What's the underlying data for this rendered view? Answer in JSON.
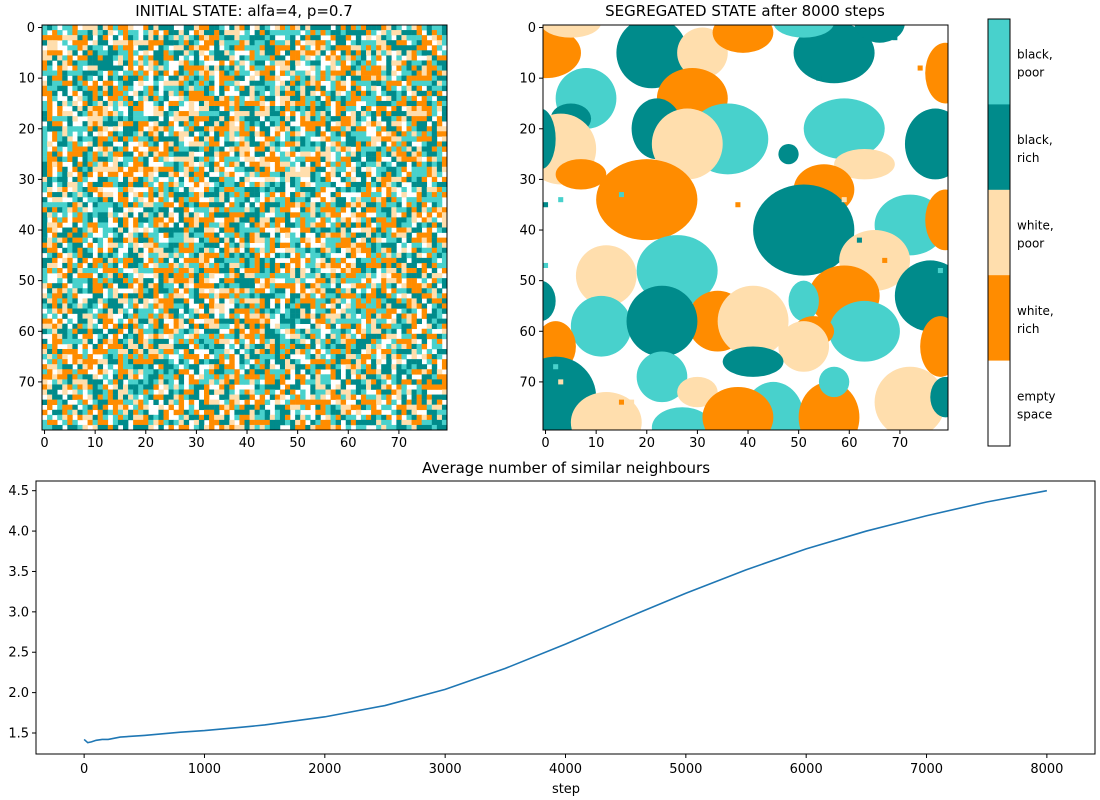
{
  "chart_data": [
    {
      "type": "heatmap",
      "title": "INITIAL STATE:  alfa=4, p=0.7",
      "grid_size": 80,
      "xticks": [
        0,
        10,
        20,
        30,
        40,
        50,
        60,
        70
      ],
      "yticks": [
        0,
        10,
        20,
        30,
        40,
        50,
        60,
        70
      ],
      "state": "random mixture of all five cell types"
    },
    {
      "type": "heatmap",
      "title": "SEGREGATED STATE  after 8000 steps",
      "grid_size": 80,
      "xticks": [
        0,
        10,
        20,
        30,
        40,
        50,
        60,
        70
      ],
      "yticks": [
        0,
        10,
        20,
        30,
        40,
        50,
        60,
        70
      ],
      "state": "segregated clusters of like cells"
    },
    {
      "type": "line",
      "title": "Average number of similar neighbours",
      "xlabel": "step",
      "ylabel": "",
      "xlim": [
        -400,
        8400
      ],
      "ylim": [
        1.24,
        4.62
      ],
      "xticks": [
        0,
        1000,
        2000,
        3000,
        4000,
        5000,
        6000,
        7000,
        8000
      ],
      "yticks": [
        "1.5",
        "2.0",
        "2.5",
        "3.0",
        "3.5",
        "4.0",
        "4.5"
      ],
      "color": "#1f77b4",
      "x": [
        0,
        30,
        60,
        100,
        150,
        200,
        300,
        500,
        800,
        1000,
        1300,
        1500,
        2000,
        2500,
        3000,
        3500,
        4000,
        4500,
        5000,
        5500,
        6000,
        6500,
        7000,
        7500,
        8000
      ],
      "y": [
        1.42,
        1.38,
        1.39,
        1.41,
        1.42,
        1.42,
        1.45,
        1.47,
        1.51,
        1.53,
        1.57,
        1.6,
        1.7,
        1.84,
        2.04,
        2.3,
        2.6,
        2.92,
        3.23,
        3.52,
        3.78,
        4.0,
        4.19,
        4.36,
        4.5
      ]
    }
  ],
  "colorbar": [
    {
      "label": "black,\npoor",
      "color": "#48d1cc"
    },
    {
      "label": "black,\nrich",
      "color": "#008b8b"
    },
    {
      "label": "white,\npoor",
      "color": "#ffdead"
    },
    {
      "label": "white,\nrich",
      "color": "#ff8c00"
    },
    {
      "label": "empty\nspace",
      "color": "#ffffff"
    }
  ]
}
